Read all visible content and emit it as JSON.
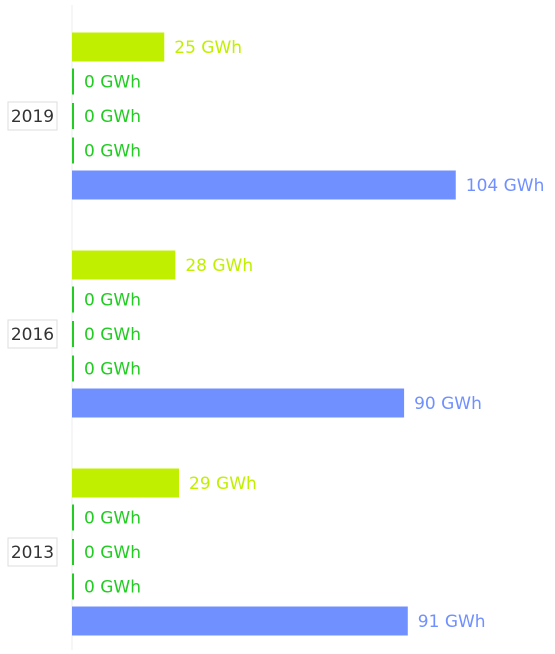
{
  "chart_data": {
    "type": "bar",
    "orientation": "horizontal",
    "categories": [
      "2019",
      "2016",
      "2013"
    ],
    "series": [
      {
        "color": "#c0f000",
        "values": [
          25,
          28,
          29
        ],
        "value_labels": [
          "25 GWh",
          "28 GWh",
          "29 GWh"
        ]
      },
      {
        "color": "#22cc22",
        "values": [
          0,
          0,
          0
        ],
        "value_labels": [
          "0 GWh",
          "0 GWh",
          "0 GWh"
        ]
      },
      {
        "color": "#22cc22",
        "values": [
          0,
          0,
          0
        ],
        "value_labels": [
          "0 GWh",
          "0 GWh",
          "0 GWh"
        ]
      },
      {
        "color": "#22cc22",
        "values": [
          0,
          0,
          0
        ],
        "value_labels": [
          "0 GWh",
          "0 GWh",
          "0 GWh"
        ]
      },
      {
        "color": "#7090ff",
        "values": [
          104,
          90,
          91
        ],
        "value_labels": [
          "104 GWh",
          "90 GWh",
          "91 GWh"
        ]
      }
    ]
  }
}
